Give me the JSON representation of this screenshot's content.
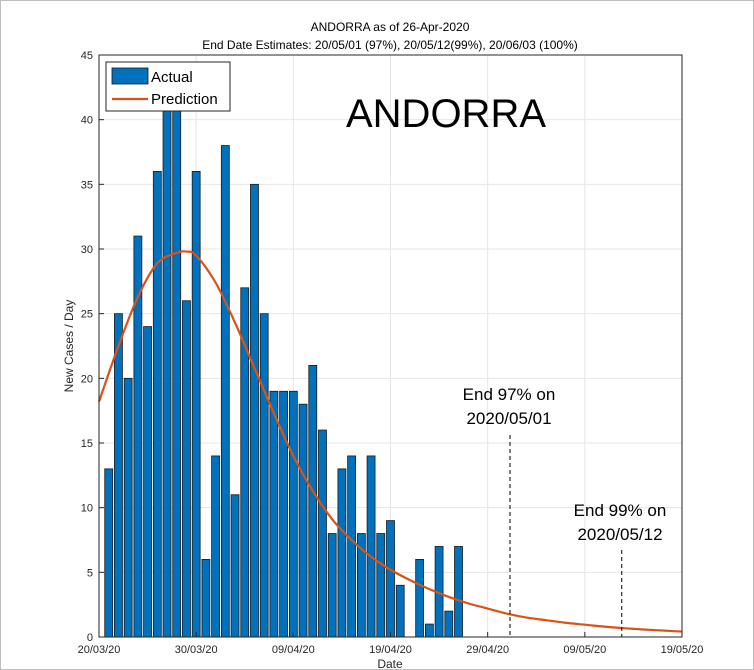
{
  "chart_data": {
    "type": "bar",
    "title": "ANDORRA as of 26-Apr-2020",
    "subtitle": "End Date Estimates: 20/05/01 (97%), 20/05/12(99%), 20/06/03 (100%)",
    "big_label": "ANDORRA",
    "xlabel": "Date",
    "ylabel": "New Cases / Day",
    "ylim": [
      0,
      45
    ],
    "xlim_days": [
      0,
      60
    ],
    "yticks": [
      0,
      5,
      10,
      15,
      20,
      25,
      30,
      35,
      40,
      45
    ],
    "xticks": [
      {
        "day": 0,
        "label": "20/03/20"
      },
      {
        "day": 10,
        "label": "30/03/20"
      },
      {
        "day": 20,
        "label": "09/04/20"
      },
      {
        "day": 30,
        "label": "19/04/20"
      },
      {
        "day": 40,
        "label": "29/04/20"
      },
      {
        "day": 50,
        "label": "09/05/20"
      },
      {
        "day": 60,
        "label": "19/05/20"
      }
    ],
    "grid": true,
    "legend": {
      "placement": "top-left",
      "entries": [
        "Actual",
        "Prediction"
      ]
    },
    "series": [
      {
        "name": "Actual",
        "color": "#0072BD",
        "start_day": 1,
        "values": [
          13,
          25,
          20,
          31,
          24,
          36,
          43,
          41,
          26,
          36,
          6,
          14,
          38,
          11,
          27,
          35,
          25,
          19,
          19,
          19,
          18,
          21,
          16,
          8,
          13,
          14,
          8,
          14,
          8,
          9,
          4,
          0,
          6,
          1,
          7,
          2,
          7
        ]
      },
      {
        "name": "Prediction",
        "color": "#D95319",
        "type": "line",
        "x": [
          0,
          2,
          4,
          6,
          8,
          9,
          10,
          12,
          14,
          16,
          18,
          20,
          22,
          24,
          26,
          28,
          30,
          32,
          34,
          36,
          38,
          40,
          42,
          44,
          46,
          48,
          50,
          52,
          54,
          56,
          58,
          60
        ],
        "values": [
          18.2,
          22.5,
          26.3,
          28.9,
          29.7,
          29.8,
          29.5,
          27.4,
          24.3,
          20.8,
          17.3,
          14.0,
          11.3,
          9.1,
          7.5,
          6.2,
          5.2,
          4.4,
          3.7,
          3.1,
          2.6,
          2.2,
          1.8,
          1.5,
          1.3,
          1.1,
          0.95,
          0.8,
          0.68,
          0.58,
          0.5,
          0.42
        ]
      }
    ],
    "annotations": [
      {
        "line1": "End 97% on",
        "line2": "2020/05/01",
        "day": 42.3
      },
      {
        "line1": "End 99% on",
        "line2": "2020/05/12",
        "day": 53.8
      }
    ]
  }
}
